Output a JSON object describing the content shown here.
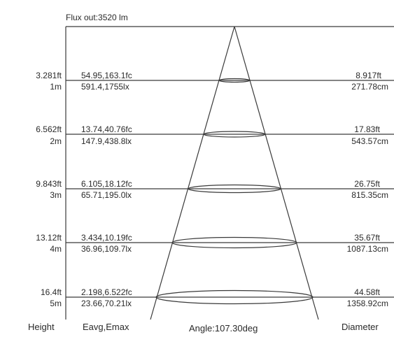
{
  "flux_label": "Flux out:3520 lm",
  "rows": [
    {
      "height_ft": "3.281ft",
      "height_m": "1m",
      "fc": "54.95,163.1fc",
      "lx": "591.4,1755lx",
      "diam_ft": "8.917ft",
      "diam_cm": "271.78cm"
    },
    {
      "height_ft": "6.562ft",
      "height_m": "2m",
      "fc": "13.74,40.76fc",
      "lx": "147.9,438.8lx",
      "diam_ft": "17.83ft",
      "diam_cm": "543.57cm"
    },
    {
      "height_ft": "9.843ft",
      "height_m": "3m",
      "fc": "6.105,18.12fc",
      "lx": "65.71,195.0lx",
      "diam_ft": "26.75ft",
      "diam_cm": "815.35cm"
    },
    {
      "height_ft": "13.12ft",
      "height_m": "4m",
      "fc": "3.434,10.19fc",
      "lx": "36.96,109.7lx",
      "diam_ft": "35.67ft",
      "diam_cm": "1087.13cm"
    },
    {
      "height_ft": "16.4ft",
      "height_m": "5m",
      "fc": "2.198,6.522fc",
      "lx": "23.66,70.21lx",
      "diam_ft": "44.58ft",
      "diam_cm": "1358.92cm"
    }
  ],
  "footer": {
    "height": "Height",
    "illuminance": "Eavg,Emax",
    "angle": "Angle:107.30deg",
    "diameter": "Diameter"
  }
}
